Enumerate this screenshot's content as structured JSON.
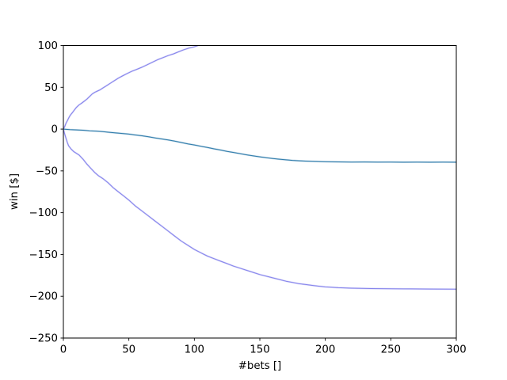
{
  "figure": {
    "background": "#ffffff",
    "title": ""
  },
  "axes": {
    "xlabel": "#bets []",
    "ylabel": "win [$]",
    "xticks": {
      "values": [
        0,
        50,
        100,
        150,
        200,
        250,
        300
      ],
      "labels": [
        "0",
        "50",
        "100",
        "150",
        "200",
        "250",
        "300"
      ]
    },
    "yticks": {
      "values": [
        100,
        50,
        0,
        -50,
        -100,
        -150,
        -200,
        -250
      ],
      "labels": [
        "100",
        "50",
        "0",
        "−50",
        "−100",
        "−150",
        "−200",
        "−250"
      ]
    },
    "spine_color": "#000000",
    "tick_color": "#000000"
  },
  "chart_data": {
    "type": "line",
    "title": "",
    "xlabel": "#bets []",
    "ylabel": "win [$]",
    "xlim": [
      0,
      300
    ],
    "ylim": [
      -250,
      100
    ],
    "grid": false,
    "legend": "none",
    "series": [
      {
        "name": "upper-envelope",
        "color": "#8583ec",
        "clipped_at_top": true,
        "x": [
          0,
          1,
          2,
          3,
          4,
          5,
          6,
          7,
          8,
          10,
          12,
          14,
          16,
          18,
          20,
          22,
          24,
          26,
          28,
          30,
          33,
          36,
          39,
          42,
          45,
          48,
          52,
          56,
          60,
          64,
          68,
          72,
          76,
          80,
          84,
          88,
          92,
          96,
          100,
          103,
          106
        ],
        "y": [
          0,
          3,
          7,
          10,
          13,
          16,
          18,
          20,
          22,
          26,
          29,
          31,
          33.5,
          36,
          39,
          42,
          44,
          45.5,
          47,
          49,
          52,
          55,
          58,
          61,
          63.5,
          66,
          69,
          71.5,
          74,
          77,
          80,
          83,
          85.5,
          88,
          90,
          92.5,
          95,
          97,
          98.5,
          100,
          101.5
        ]
      },
      {
        "name": "mean",
        "color": "#2f7cab",
        "clipped_at_top": false,
        "x": [
          0,
          5,
          10,
          15,
          20,
          25,
          30,
          35,
          40,
          45,
          50,
          55,
          60,
          65,
          70,
          75,
          80,
          85,
          90,
          95,
          100,
          105,
          110,
          115,
          120,
          125,
          130,
          135,
          140,
          145,
          150,
          155,
          160,
          165,
          170,
          175,
          180,
          185,
          190,
          200,
          210,
          220,
          230,
          240,
          250,
          260,
          270,
          280,
          290,
          300
        ],
        "y": [
          0,
          -0.6,
          -1,
          -1.4,
          -2,
          -2.4,
          -3,
          -3.8,
          -4.6,
          -5.2,
          -6,
          -7,
          -8,
          -9.2,
          -10.5,
          -11.8,
          -13,
          -14.4,
          -16,
          -17.6,
          -19,
          -20.6,
          -22,
          -23.6,
          -25,
          -26.6,
          -28,
          -29.4,
          -30.8,
          -32,
          -33.2,
          -34.2,
          -35.2,
          -36,
          -36.8,
          -37.4,
          -37.9,
          -38.3,
          -38.6,
          -39,
          -39.2,
          -39.4,
          -39.3,
          -39.5,
          -39.4,
          -39.6,
          -39.5,
          -39.6,
          -39.5,
          -39.6
        ]
      },
      {
        "name": "lower-envelope",
        "color": "#8583ec",
        "clipped_at_top": false,
        "x": [
          0,
          1,
          2,
          3,
          4,
          6,
          8,
          10,
          12,
          15,
          18,
          21,
          24,
          27,
          30,
          34,
          38,
          42,
          46,
          50,
          55,
          60,
          65,
          70,
          75,
          80,
          85,
          90,
          95,
          100,
          105,
          110,
          115,
          120,
          125,
          130,
          135,
          140,
          145,
          150,
          155,
          160,
          165,
          170,
          175,
          180,
          185,
          190,
          195,
          200,
          210,
          220,
          235,
          250,
          265,
          280,
          300
        ],
        "y": [
          0,
          -6,
          -11,
          -16,
          -20,
          -24,
          -27,
          -29,
          -31,
          -36,
          -42,
          -47,
          -52,
          -56,
          -59,
          -64,
          -70,
          -75,
          -80,
          -85,
          -92,
          -98,
          -104,
          -110,
          -116,
          -122,
          -128,
          -134,
          -139,
          -144,
          -148,
          -152,
          -155,
          -158,
          -161,
          -164,
          -166.5,
          -169,
          -171.5,
          -174,
          -176,
          -178,
          -180,
          -182,
          -183.5,
          -185,
          -186,
          -187,
          -188,
          -188.8,
          -189.8,
          -190.3,
          -190.8,
          -191,
          -191.2,
          -191.4,
          -191.6
        ]
      }
    ]
  }
}
